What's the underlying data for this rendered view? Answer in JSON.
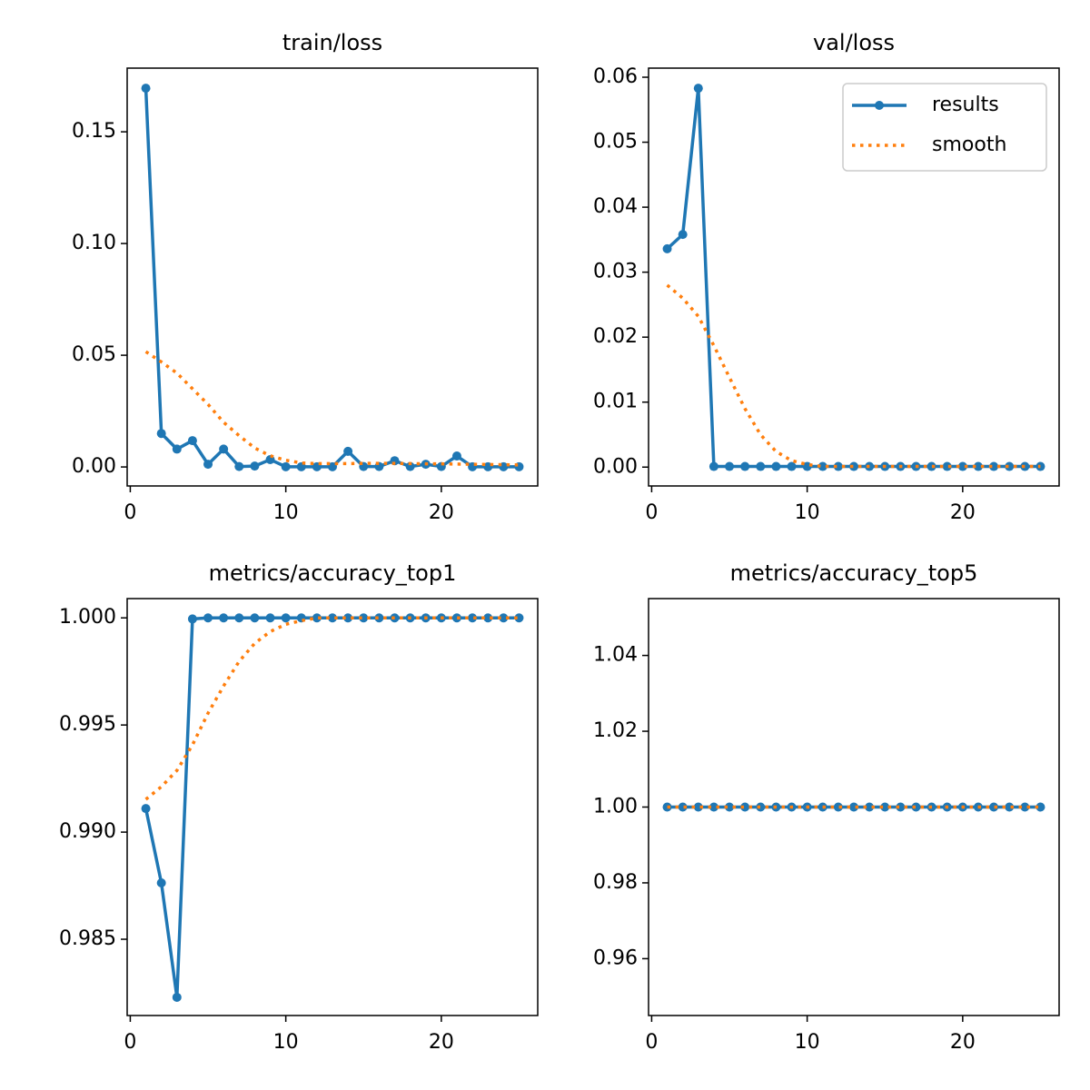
{
  "chart_data": [
    {
      "type": "line",
      "title": "train/loss",
      "x": [
        1,
        2,
        3,
        4,
        5,
        6,
        7,
        8,
        9,
        10,
        11,
        12,
        13,
        14,
        15,
        16,
        17,
        18,
        19,
        20,
        21,
        22,
        23,
        24,
        25
      ],
      "series": [
        {
          "color": "#1f77b4",
          "linestyle": "solid",
          "marker": "o",
          "values": [
            0.1695,
            0.015,
            0.008,
            0.0118,
            0.0012,
            0.008,
            0.0002,
            0.0004,
            0.0033,
            0.0001,
            0.0001,
            0.0001,
            0.0001,
            0.007,
            0.0002,
            0.0002,
            0.0028,
            0.0002,
            0.0012,
            0.0002,
            0.0049,
            0.0001,
            0.0001,
            0.0001,
            0.0001
          ]
        },
        {
          "color": "#ff7f0e",
          "linestyle": "dotted",
          "values": [
            0.0516,
            0.047,
            0.042,
            0.035,
            0.028,
            0.02,
            0.014,
            0.0085,
            0.005,
            0.003,
            0.0018,
            0.0015,
            0.0015,
            0.0015,
            0.0016,
            0.0016,
            0.0016,
            0.0015,
            0.0014,
            0.0014,
            0.0013,
            0.0012,
            0.0011,
            0.001,
            0.0009
          ]
        }
      ],
      "xlim": [
        -0.2,
        26.2
      ],
      "xticks": [
        0,
        10,
        20
      ],
      "ylim": [
        -0.0085,
        0.1785
      ],
      "yticks": [
        {
          "value": 0,
          "label": "0.00"
        },
        {
          "value": 0.05,
          "label": "0.05"
        },
        {
          "value": 0.1,
          "label": "0.10"
        },
        {
          "value": 0.15,
          "label": "0.15"
        }
      ]
    },
    {
      "type": "line",
      "title": "val/loss",
      "x": [
        1,
        2,
        3,
        4,
        5,
        6,
        7,
        8,
        9,
        10,
        11,
        12,
        13,
        14,
        15,
        16,
        17,
        18,
        19,
        20,
        21,
        22,
        23,
        24,
        25
      ],
      "series": [
        {
          "name": "results",
          "color": "#1f77b4",
          "linestyle": "solid",
          "marker": "o",
          "values": [
            0.0336,
            0.0358,
            0.0583,
            0.0001,
            0.0001,
            0.0001,
            0.0001,
            0.0001,
            0.0001,
            0.0001,
            0.0001,
            0.0001,
            0.0001,
            0.0001,
            0.0001,
            0.0001,
            0.0001,
            0.0001,
            0.0001,
            0.0001,
            0.0001,
            0.0001,
            0.0001,
            0.0001,
            0.0001
          ]
        },
        {
          "name": "smooth",
          "color": "#ff7f0e",
          "linestyle": "dotted",
          "values": [
            0.028,
            0.026,
            0.0232,
            0.0187,
            0.0138,
            0.009,
            0.005,
            0.0024,
            0.001,
            0.0004,
            0.0001,
            0.0001,
            0.0001,
            0.0001,
            0.0001,
            0.0001,
            0.0001,
            0.0001,
            0.0001,
            0.0001,
            0.0001,
            0.0001,
            0.0001,
            0.0001,
            0.0001
          ]
        }
      ],
      "legend": "upper right",
      "xlim": [
        -0.2,
        26.2
      ],
      "xticks": [
        0,
        10,
        20
      ],
      "ylim": [
        -0.0029,
        0.0614
      ],
      "yticks": [
        {
          "value": 0,
          "label": "0.00"
        },
        {
          "value": 0.01,
          "label": "0.01"
        },
        {
          "value": 0.02,
          "label": "0.02"
        },
        {
          "value": 0.03,
          "label": "0.03"
        },
        {
          "value": 0.04,
          "label": "0.04"
        },
        {
          "value": 0.05,
          "label": "0.05"
        },
        {
          "value": 0.06,
          "label": "0.06"
        }
      ]
    },
    {
      "type": "line",
      "title": "metrics/accuracy_top1",
      "x": [
        1,
        2,
        3,
        4,
        5,
        6,
        7,
        8,
        9,
        10,
        11,
        12,
        13,
        14,
        15,
        16,
        17,
        18,
        19,
        20,
        21,
        22,
        23,
        24,
        25
      ],
      "series": [
        {
          "color": "#1f77b4",
          "linestyle": "solid",
          "marker": "o",
          "values": [
            0.9911,
            0.98763,
            0.98229,
            0.99995,
            1,
            1,
            1,
            1,
            1,
            1,
            1,
            1,
            1,
            1,
            1,
            1,
            1,
            1,
            1,
            1,
            1,
            1,
            1,
            1,
            1
          ]
        },
        {
          "color": "#ff7f0e",
          "linestyle": "dotted",
          "values": [
            0.99153,
            0.99212,
            0.99288,
            0.99407,
            0.99555,
            0.99682,
            0.99797,
            0.99881,
            0.99936,
            0.9997,
            0.99987,
            1,
            1,
            1,
            1,
            1,
            1,
            1,
            1,
            1,
            1,
            1,
            1,
            1,
            1
          ]
        }
      ],
      "xlim": [
        -0.2,
        26.2
      ],
      "xticks": [
        0,
        10,
        20
      ],
      "ylim": [
        0.98144,
        1.0009
      ],
      "yticks": [
        {
          "value": 0.985,
          "label": "0.985"
        },
        {
          "value": 0.99,
          "label": "0.990"
        },
        {
          "value": 0.995,
          "label": "0.995"
        },
        {
          "value": 1,
          "label": "1.000"
        }
      ]
    },
    {
      "type": "line",
      "title": "metrics/accuracy_top5",
      "x": [
        1,
        2,
        3,
        4,
        5,
        6,
        7,
        8,
        9,
        10,
        11,
        12,
        13,
        14,
        15,
        16,
        17,
        18,
        19,
        20,
        21,
        22,
        23,
        24,
        25
      ],
      "series": [
        {
          "color": "#1f77b4",
          "linestyle": "solid",
          "marker": "o",
          "values": [
            1,
            1,
            1,
            1,
            1,
            1,
            1,
            1,
            1,
            1,
            1,
            1,
            1,
            1,
            1,
            1,
            1,
            1,
            1,
            1,
            1,
            1,
            1,
            1,
            1
          ]
        },
        {
          "color": "#ff7f0e",
          "linestyle": "dotted",
          "values": [
            1,
            1,
            1,
            1,
            1,
            1,
            1,
            1,
            1,
            1,
            1,
            1,
            1,
            1,
            1,
            1,
            1,
            1,
            1,
            1,
            1,
            1,
            1,
            1,
            1
          ]
        }
      ],
      "xlim": [
        -0.2,
        26.2
      ],
      "xticks": [
        0,
        10,
        20
      ],
      "ylim": [
        0.945,
        1.055
      ],
      "yticks": [
        {
          "value": 0.96,
          "label": "0.96"
        },
        {
          "value": 0.98,
          "label": "0.98"
        },
        {
          "value": 1,
          "label": "1.00"
        },
        {
          "value": 1.02,
          "label": "1.02"
        },
        {
          "value": 1.04,
          "label": "1.04"
        }
      ]
    }
  ]
}
